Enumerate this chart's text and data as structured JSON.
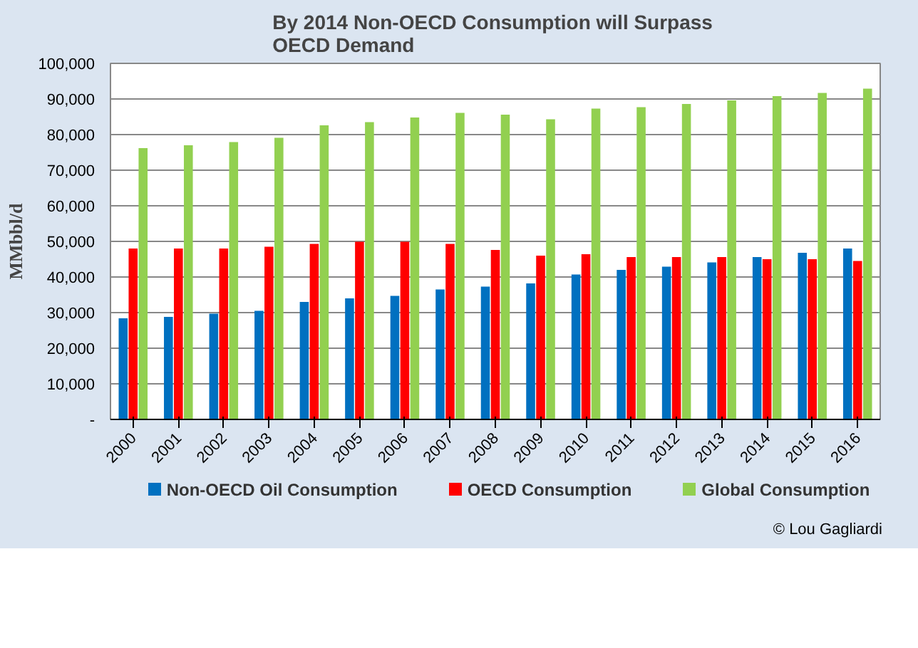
{
  "chart_data": {
    "type": "bar",
    "title": "By 2014 Non-OECD Consumption  will Surpass OECD Demand",
    "ylabel": "MMbbl/d",
    "categories": [
      "2000",
      "2001",
      "2002",
      "2003",
      "2004",
      "2005",
      "2006",
      "2007",
      "2008",
      "2009",
      "2010",
      "2011",
      "2012",
      "2013",
      "2014",
      "2015",
      "2016"
    ],
    "series": [
      {
        "name": "Non-OECD Oil Consumption",
        "color": "#0070c0",
        "values": [
          28400,
          28800,
          29700,
          30500,
          33000,
          34000,
          34700,
          36500,
          37300,
          38200,
          40700,
          42000,
          42900,
          44100,
          45600,
          46800,
          48000
        ]
      },
      {
        "name": "OECD Consumption",
        "color": "#ff0000",
        "values": [
          48000,
          48000,
          48000,
          48500,
          49300,
          49900,
          49900,
          49300,
          47600,
          46000,
          46400,
          45600,
          45600,
          45600,
          45000,
          45000,
          44500
        ]
      },
      {
        "name": "Global Consumption",
        "color": "#92d050",
        "values": [
          76200,
          77000,
          77900,
          79100,
          82600,
          83500,
          84800,
          86100,
          85600,
          84300,
          87300,
          87700,
          88600,
          89600,
          90800,
          91700,
          92900
        ]
      }
    ],
    "ylim": [
      0,
      100000
    ],
    "yticks": [
      {
        "value": 0,
        "label": "-"
      },
      {
        "value": 10000,
        "label": "10,000"
      },
      {
        "value": 20000,
        "label": "20,000"
      },
      {
        "value": 30000,
        "label": "30,000"
      },
      {
        "value": 40000,
        "label": "40,000"
      },
      {
        "value": 50000,
        "label": "50,000"
      },
      {
        "value": 60000,
        "label": "60,000"
      },
      {
        "value": 70000,
        "label": "70,000"
      },
      {
        "value": 80000,
        "label": "80,000"
      },
      {
        "value": 90000,
        "label": "90,000"
      },
      {
        "value": 100000,
        "label": "100,000"
      }
    ],
    "grid": "y",
    "legend": "bottom",
    "annotations": [
      "© Lou Gagliardi"
    ]
  }
}
